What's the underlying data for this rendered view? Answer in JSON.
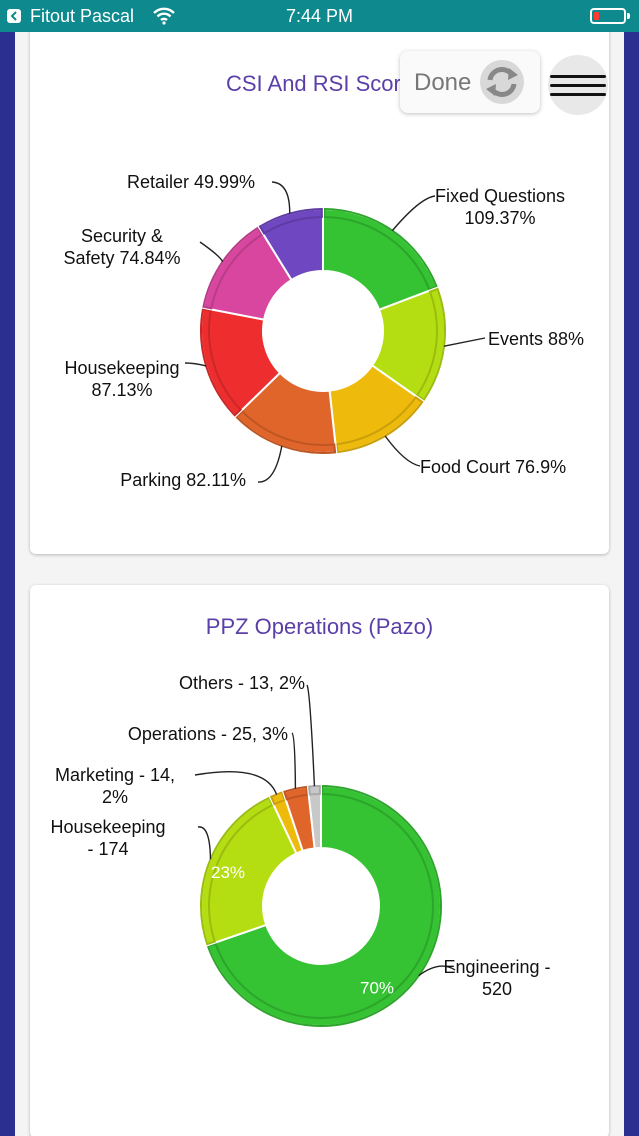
{
  "status_bar": {
    "carrier": "Fitout Pascal",
    "time": "7:44 PM"
  },
  "toolbar": {
    "done_label": "Done"
  },
  "cards": [
    {
      "title": "CSI And RSI Score",
      "chart_data": {
        "type": "pie",
        "style": "donut",
        "title": "CSI And RSI Score",
        "slices": [
          {
            "label": "Fixed Questions 109.37%",
            "value": 109.37,
            "color": "#35c233"
          },
          {
            "label": "Events 88%",
            "value": 88,
            "color": "#b5de12"
          },
          {
            "label": "Food Court 76.9%",
            "value": 76.9,
            "color": "#eebb0c"
          },
          {
            "label": "Parking 82.11%",
            "value": 82.11,
            "color": "#e0652a"
          },
          {
            "label": "Housekeeping 87.13%",
            "value": 87.13,
            "color": "#ee2e2e"
          },
          {
            "label": "Security & Safety 74.84%",
            "value": 74.84,
            "color": "#d9469f"
          },
          {
            "label": "Retailer 49.99%",
            "value": 49.99,
            "color": "#6f47c0"
          }
        ]
      }
    },
    {
      "title": "PPZ Operations (Pazo)",
      "chart_data": {
        "type": "pie",
        "style": "donut",
        "title": "PPZ Operations (Pazo)",
        "slices": [
          {
            "label": "Engineering - 520",
            "value": 520,
            "percent_label": "70%",
            "color": "#35c233"
          },
          {
            "label": "Housekeeping - 174",
            "value": 174,
            "percent_label": "23%",
            "color": "#b5de12"
          },
          {
            "label": "Marketing - 14, 2%",
            "value": 14,
            "percent_label": "",
            "color": "#eebb0c"
          },
          {
            "label": "Operations - 25, 3%",
            "value": 25,
            "percent_label": "",
            "color": "#e0652a"
          },
          {
            "label": "Others - 13, 2%",
            "value": 13,
            "percent_label": "",
            "color": "#c8c8c8"
          }
        ]
      }
    }
  ]
}
